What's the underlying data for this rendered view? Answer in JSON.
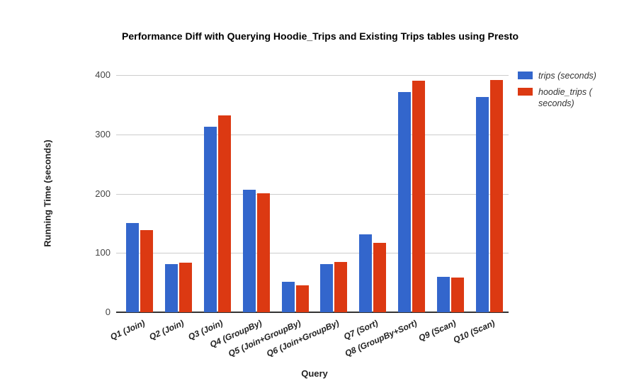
{
  "chart": {
    "title": "Performance Diff with Querying Hoodie_Trips and Existing Trips tables using Presto"
  },
  "chart_data": {
    "type": "bar",
    "title": "Performance Diff with Querying Hoodie_Trips and Existing Trips tables using Presto",
    "categories": [
      "Q1 (Join)",
      "Q2 (Join)",
      "Q3 (Join)",
      "Q4 (GroupBy)",
      "Q5 (Join+GroupBy)",
      "Q6 (Join+GroupBy)",
      "Q7 (Sort)",
      "Q8 (GroupBy+Sort)",
      "Q9 (Scan)",
      "Q10 (Scan)"
    ],
    "series": [
      {
        "name": "trips (seconds)",
        "color": "#3366cc",
        "values": [
          150,
          81,
          313,
          207,
          51,
          81,
          131,
          371,
          60,
          363
        ]
      },
      {
        "name": "hoodie_trips ( seconds)",
        "color": "#dc3912",
        "values": [
          138,
          84,
          332,
          201,
          45,
          85,
          117,
          390,
          59,
          392
        ]
      }
    ],
    "xlabel": "Query",
    "ylabel": "Running Time (seconds)",
    "ylim": [
      0,
      400
    ],
    "yticks": [
      0,
      100,
      200,
      300,
      400
    ],
    "grid": true,
    "legend_position": "right",
    "bar_label_angle_deg": -24,
    "colors": {
      "gridline": "#cccccc",
      "axis_line": "#333333",
      "tick_text": "#444444"
    }
  }
}
